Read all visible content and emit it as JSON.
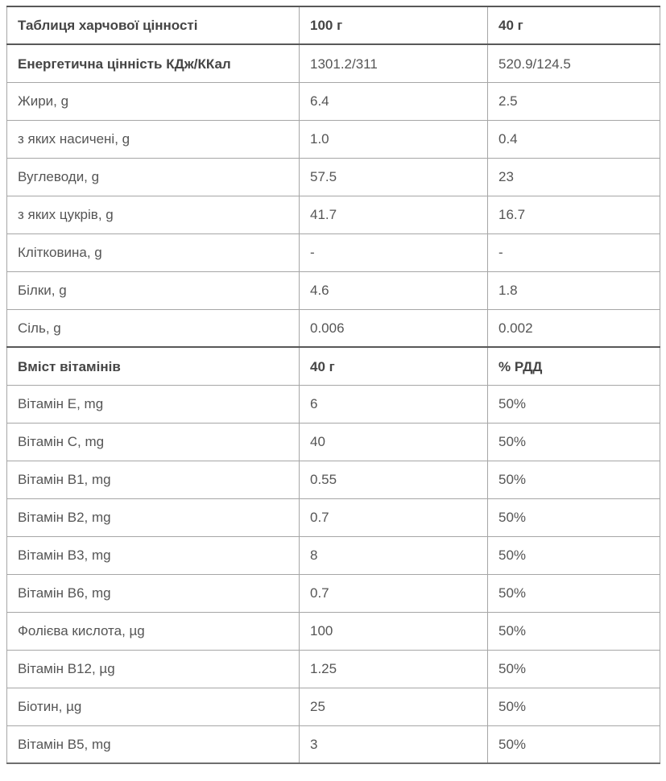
{
  "colors": {
    "text": "#555555",
    "bold_text": "#454545",
    "border_light": "#a6a6a6",
    "border_dark": "#585858",
    "background": "#ffffff"
  },
  "table": {
    "rows": [
      {
        "style": "header",
        "cells": [
          "Таблиця харчової цінності",
          "100 г",
          "40 г"
        ]
      },
      {
        "style": "section-label",
        "cells": [
          "Енергетична цінність КДж/ККал",
          "1301.2/311",
          "520.9/124.5"
        ]
      },
      {
        "style": "data",
        "cells": [
          "Жири, g",
          "6.4",
          "2.5"
        ]
      },
      {
        "style": "data",
        "cells": [
          "з яких насичені, g",
          "1.0",
          "0.4"
        ]
      },
      {
        "style": "data",
        "cells": [
          "Вуглеводи, g",
          "57.5",
          "23"
        ]
      },
      {
        "style": "data",
        "cells": [
          "з яких цукрів, g",
          "41.7",
          "16.7"
        ]
      },
      {
        "style": "data",
        "cells": [
          "Клітковина, g",
          "-",
          "-"
        ]
      },
      {
        "style": "data",
        "cells": [
          "Білки, g",
          "4.6",
          "1.8"
        ]
      },
      {
        "style": "data",
        "cells": [
          "Сіль, g",
          "0.006",
          "0.002"
        ]
      },
      {
        "style": "header",
        "cells": [
          "Вміст вітамінів",
          "40 г",
          "% РДД"
        ]
      },
      {
        "style": "data",
        "cells": [
          "Вітамін E, mg",
          "6",
          "50%"
        ]
      },
      {
        "style": "data",
        "cells": [
          "Вітамін C, mg",
          "40",
          "50%"
        ]
      },
      {
        "style": "data",
        "cells": [
          "Вітамін B1, mg",
          "0.55",
          "50%"
        ]
      },
      {
        "style": "data",
        "cells": [
          "Вітамін B2, mg",
          "0.7",
          "50%"
        ]
      },
      {
        "style": "data",
        "cells": [
          "Вітамін B3, mg",
          "8",
          "50%"
        ]
      },
      {
        "style": "data",
        "cells": [
          "Вітамін B6, mg",
          "0.7",
          "50%"
        ]
      },
      {
        "style": "data",
        "cells": [
          "Фолієва кислота, µg",
          "100",
          "50%"
        ]
      },
      {
        "style": "data",
        "cells": [
          "Вітамін B12, µg",
          "1.25",
          "50%"
        ]
      },
      {
        "style": "data",
        "cells": [
          "Біотин, µg",
          "25",
          "50%"
        ]
      },
      {
        "style": "data",
        "cells": [
          "Вітамін B5, mg",
          "3",
          "50%"
        ]
      }
    ]
  }
}
